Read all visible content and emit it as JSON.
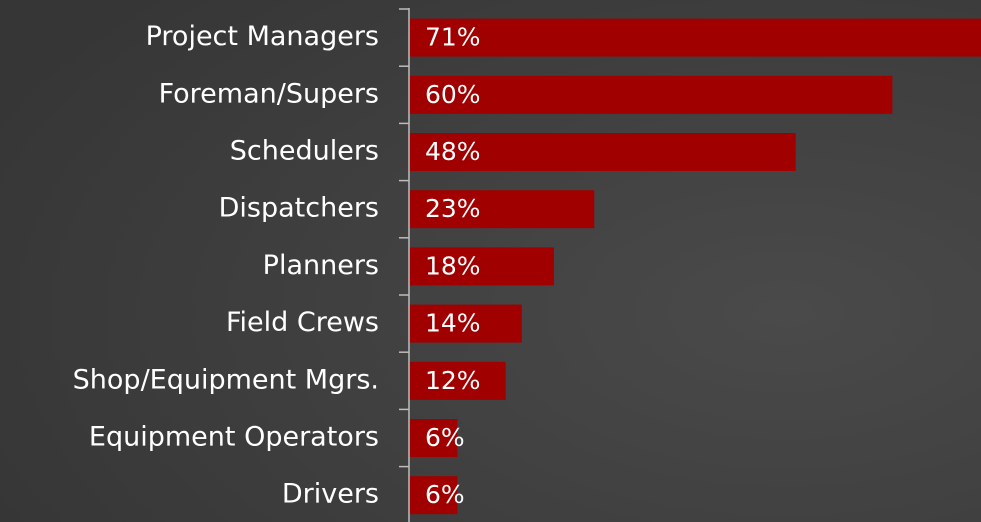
{
  "chart_data": {
    "type": "bar",
    "orientation": "horizontal",
    "categories": [
      "Project Managers",
      "Foreman/Supers",
      "Schedulers",
      "Dispatchers",
      "Planners",
      "Field Crews",
      "Shop/Equipment Mgrs.",
      "Equipment Operators",
      "Drivers"
    ],
    "values": [
      71,
      60,
      48,
      23,
      18,
      14,
      12,
      6,
      6
    ],
    "value_labels": [
      "71%",
      "60%",
      "48%",
      "23%",
      "18%",
      "14%",
      "12%",
      "6%",
      "6%"
    ],
    "color": "#a00000"
  }
}
